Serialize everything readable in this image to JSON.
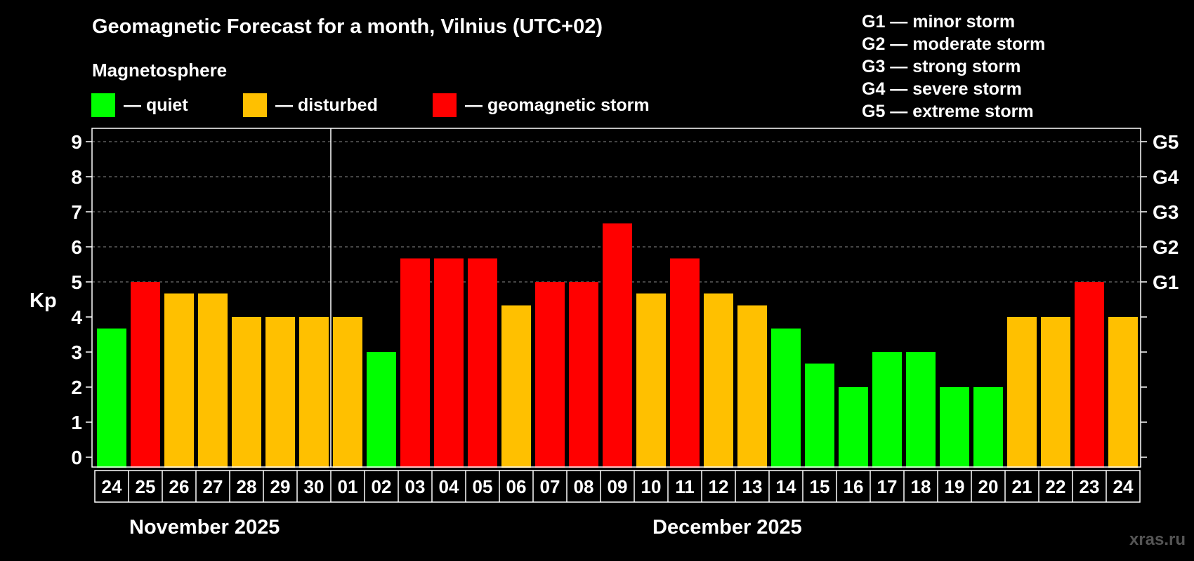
{
  "header": {
    "title": "Geomagnetic Forecast for a month, Vilnius (UTC+02)",
    "subtitle": "Magnetosphere"
  },
  "legend": [
    {
      "label": "— quiet",
      "color": "#00ff00"
    },
    {
      "label": "— disturbed",
      "color": "#ffc000"
    },
    {
      "label": "— geomagnetic storm",
      "color": "#ff0000"
    }
  ],
  "storm_scale": [
    "G1 — minor storm",
    "G2 — moderate storm",
    "G3 — strong storm",
    "G4 — severe storm",
    "G5 — extreme storm"
  ],
  "months": {
    "first": "November 2025",
    "second": "December 2025"
  },
  "watermark": "xras.ru",
  "chart_data": {
    "type": "bar",
    "ylabel": "Kp",
    "ylim": [
      0,
      9
    ],
    "yticks": [
      "0",
      "1",
      "2",
      "3",
      "4",
      "5",
      "6",
      "7",
      "8",
      "9"
    ],
    "right_ticks": [
      {
        "value": 5,
        "label": "G1"
      },
      {
        "value": 6,
        "label": "G2"
      },
      {
        "value": 7,
        "label": "G3"
      },
      {
        "value": 8,
        "label": "G4"
      },
      {
        "value": 9,
        "label": "G5"
      }
    ],
    "categories": [
      "24",
      "25",
      "26",
      "27",
      "28",
      "29",
      "30",
      "01",
      "02",
      "03",
      "04",
      "05",
      "06",
      "07",
      "08",
      "09",
      "10",
      "11",
      "12",
      "13",
      "14",
      "15",
      "16",
      "17",
      "18",
      "19",
      "20",
      "21",
      "22",
      "23",
      "24"
    ],
    "values": [
      3.67,
      5,
      4.67,
      4.67,
      4,
      4,
      4,
      4,
      3,
      5.67,
      5.67,
      5.67,
      4.33,
      5,
      5,
      6.67,
      4.67,
      5.67,
      4.67,
      4.33,
      3.67,
      2.67,
      2,
      3,
      3,
      2,
      2,
      4,
      4,
      5,
      4
    ],
    "bar_colors": [
      "#00ff00",
      "#ff0000",
      "#ffc000",
      "#ffc000",
      "#ffc000",
      "#ffc000",
      "#ffc000",
      "#ffc000",
      "#00ff00",
      "#ff0000",
      "#ff0000",
      "#ff0000",
      "#ffc000",
      "#ff0000",
      "#ff0000",
      "#ff0000",
      "#ffc000",
      "#ff0000",
      "#ffc000",
      "#ffc000",
      "#00ff00",
      "#00ff00",
      "#00ff00",
      "#00ff00",
      "#00ff00",
      "#00ff00",
      "#00ff00",
      "#ffc000",
      "#ffc000",
      "#ff0000",
      "#ffc000"
    ],
    "month_divider_after": "30",
    "grid": true
  }
}
